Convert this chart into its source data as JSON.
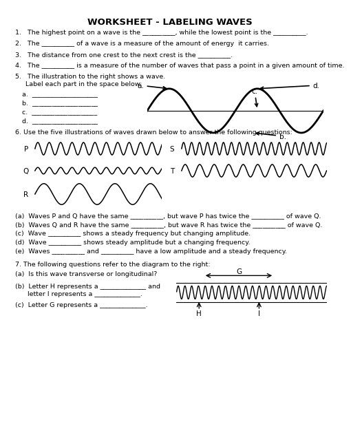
{
  "title": "WORKSHEET - LABELING WAVES",
  "bg_color": "#ffffff",
  "q1": "1.   The highest point on a wave is the __________, while the lowest point is the __________.",
  "q2": "2.   The __________ of a wave is a measure of the amount of energy  it carries.",
  "q3": "3.   The distance from one crest to the next crest is the __________.",
  "q4": "4.   The __________ is a measure of the number of waves that pass a point in a given amount of time.",
  "q5a": "5.   The illustration to the right shows a wave.",
  "q5b": "     Label each part in the space below:",
  "sub5": [
    "a.  ____________________",
    "b.  ____________________",
    "c.  ____________________",
    "d.  ____________________"
  ],
  "q6": "6. Use the five illustrations of waves drawn below to answer the following questions:",
  "sub6": [
    "(a)  Waves P and Q have the same __________, but wave P has twice the __________ of wave Q.",
    "(b)  Waves Q and R have the same __________, but wave R has twice the __________ of wave Q.",
    "(c)  Wave __________ shows a steady frequency but changing amplitude.",
    "(d)  Wave __________ shows steady amplitude but a changing frequency.",
    "(e)  Waves __________ and __________ have a low amplitude and a steady frequency."
  ],
  "q7": "7. The following questions refer to the diagram to the right:",
  "sub7a": "(a)  Is this wave transverse or longitudinal?",
  "sub7b1": "(b)  Letter H represents a ______________ and",
  "sub7b2": "      letter I represents a ______________.",
  "sub7c": "(c)  Letter G represents a ______________."
}
